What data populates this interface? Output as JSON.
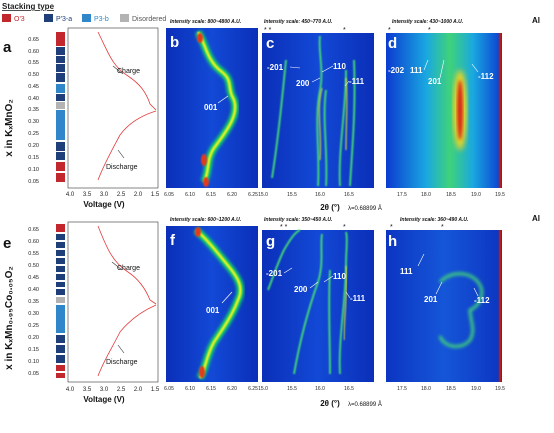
{
  "legend": {
    "title": "Stacking type",
    "items": [
      {
        "label": "O'3",
        "color": "#c1272d"
      },
      {
        "label": "P'3-a",
        "color": "#1f3f7a"
      },
      {
        "label": "P3-b",
        "color": "#2f86c8"
      },
      {
        "label": "Disordered",
        "color": "#b3b3b3"
      }
    ]
  },
  "top": {
    "panel_letters": {
      "a": "a",
      "b": "b",
      "c": "c",
      "d": "d"
    },
    "ylabel": "x in KₓMnO₂",
    "yticks": [
      "0.65",
      "0.60",
      "0.55",
      "0.50",
      "0.45",
      "0.40",
      "0.35",
      "0.30",
      "0.25",
      "0.20",
      "0.15",
      "0.10",
      "0.05"
    ],
    "voltage_ticks": [
      "4.0",
      "3.5",
      "3.0",
      "2.5",
      "2.0",
      "1.5"
    ],
    "xlabel_voltage": "Voltage (V)",
    "charge_label": "Charge",
    "discharge_label": "Discharge",
    "scale_b": "Intensity scale: 800~4800 A.U.",
    "scale_c": "Intensity scale: 450~770 A.U.",
    "scale_d": "Intensity scale: 430~1000 A.U.",
    "al_label": "Al",
    "b_ticks": [
      "6.05",
      "6.10",
      "6.15",
      "6.20",
      "6.25"
    ],
    "c_ticks": [
      "15.0",
      "15.5",
      "16.0",
      "16.5"
    ],
    "d_ticks": [
      "17.5",
      "18.0",
      "18.5",
      "19.0",
      "19.5"
    ],
    "peak_b": "001",
    "peaks_c": [
      "-201",
      "110",
      "200",
      "-111"
    ],
    "peaks_d": [
      "-202",
      "111",
      "201",
      "-112"
    ],
    "two_theta": "2θ (°)",
    "wavelength": "λ=0.68899 Å"
  },
  "bottom": {
    "panel_letters": {
      "e": "e",
      "f": "f",
      "g": "g",
      "h": "h"
    },
    "ylabel": "x in KₓMn₀.₉₅Co₀.₀₅O₂",
    "yticks": [
      "0.65",
      "0.60",
      "0.55",
      "0.50",
      "0.45",
      "0.40",
      "0.35",
      "0.30",
      "0.25",
      "0.20",
      "0.15",
      "0.10",
      "0.05"
    ],
    "voltage_ticks": [
      "4.0",
      "3.5",
      "3.0",
      "2.5",
      "2.0",
      "1.5"
    ],
    "xlabel_voltage": "Voltage (V)",
    "charge_label": "Charge",
    "discharge_label": "Discharge",
    "scale_f": "Intensity scale: 600~1200 A.U.",
    "scale_g": "Intensity scale: 350~450 A.U.",
    "scale_h": "Intensity scale: 360~490 A.U.",
    "al_label": "Al",
    "f_ticks": [
      "6.05",
      "6.10",
      "6.15",
      "6.20",
      "6.25"
    ],
    "g_ticks": [
      "15.0",
      "15.5",
      "16.0",
      "16.5"
    ],
    "h_ticks": [
      "17.5",
      "18.0",
      "18.5",
      "19.0",
      "19.5"
    ],
    "peak_f": "001",
    "peaks_g": [
      "-201",
      "200",
      "110",
      "-111"
    ],
    "peaks_h": [
      "111",
      "201",
      "-112"
    ],
    "two_theta": "2θ (°)",
    "wavelength": "λ=0.68899 Å"
  }
}
